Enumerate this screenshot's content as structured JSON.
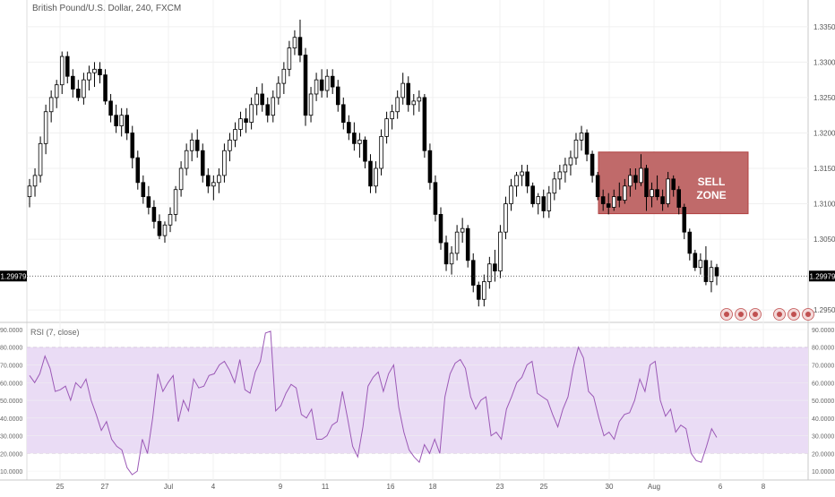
{
  "chart_data": [
    {
      "type": "candlestick",
      "title": "British Pound/U.S. Dollar, 240, FXCM",
      "x_tick_labels": [
        "25",
        "27",
        "Jul",
        "4",
        "9",
        "11",
        "16",
        "18",
        "23",
        "25",
        "30",
        "Aug",
        "6",
        "8"
      ],
      "y_tick_labels": [
        "1.33500",
        "1.33000",
        "1.32500",
        "1.32000",
        "1.31500",
        "1.31000",
        "1.30500",
        "1.29500"
      ],
      "ylim": [
        1.2935,
        1.3365
      ],
      "current_price": 1.29979,
      "current_price_label": "1.29979",
      "annotation": {
        "label_lines": [
          "SELL",
          "ZONE"
        ],
        "price_low": 1.3086,
        "price_high": 1.3173,
        "fill_color": "#c06a6a"
      },
      "up_color": "#ffffff",
      "down_color": "#000000",
      "ohlc": [
        [
          1.311,
          1.3135,
          1.3095,
          1.3125
        ],
        [
          1.3125,
          1.315,
          1.311,
          1.314
        ],
        [
          1.314,
          1.3195,
          1.313,
          1.3185
        ],
        [
          1.3185,
          1.324,
          1.317,
          1.323
        ],
        [
          1.323,
          1.326,
          1.3215,
          1.325
        ],
        [
          1.325,
          1.3275,
          1.3235,
          1.3268
        ],
        [
          1.3268,
          1.3315,
          1.3255,
          1.3308
        ],
        [
          1.3308,
          1.3315,
          1.327,
          1.328
        ],
        [
          1.328,
          1.329,
          1.325,
          1.3262
        ],
        [
          1.3262,
          1.3275,
          1.3245,
          1.325
        ],
        [
          1.325,
          1.3285,
          1.324,
          1.3275
        ],
        [
          1.3275,
          1.3295,
          1.326,
          1.3285
        ],
        [
          1.3285,
          1.33,
          1.3265,
          1.329
        ],
        [
          1.329,
          1.33,
          1.327,
          1.3282
        ],
        [
          1.3282,
          1.329,
          1.324,
          1.3245
        ],
        [
          1.3245,
          1.3255,
          1.3215,
          1.3225
        ],
        [
          1.3225,
          1.324,
          1.32,
          1.321
        ],
        [
          1.321,
          1.3235,
          1.3195,
          1.3225
        ],
        [
          1.3225,
          1.3235,
          1.319,
          1.32
        ],
        [
          1.32,
          1.321,
          1.315,
          1.3165
        ],
        [
          1.3165,
          1.3175,
          1.312,
          1.313
        ],
        [
          1.313,
          1.314,
          1.31,
          1.311
        ],
        [
          1.311,
          1.3125,
          1.3085,
          1.3095
        ],
        [
          1.3095,
          1.3105,
          1.3065,
          1.3075
        ],
        [
          1.3075,
          1.3085,
          1.305,
          1.3055
        ],
        [
          1.3055,
          1.3075,
          1.3045,
          1.307
        ],
        [
          1.307,
          1.3095,
          1.306,
          1.3085
        ],
        [
          1.3085,
          1.3125,
          1.3075,
          1.312
        ],
        [
          1.312,
          1.316,
          1.311,
          1.315
        ],
        [
          1.315,
          1.3185,
          1.314,
          1.3175
        ],
        [
          1.3175,
          1.32,
          1.316,
          1.319
        ],
        [
          1.319,
          1.3205,
          1.3165,
          1.3175
        ],
        [
          1.3175,
          1.3185,
          1.313,
          1.314
        ],
        [
          1.314,
          1.315,
          1.3115,
          1.3125
        ],
        [
          1.3125,
          1.314,
          1.3105,
          1.313
        ],
        [
          1.313,
          1.315,
          1.3115,
          1.314
        ],
        [
          1.314,
          1.3185,
          1.313,
          1.3175
        ],
        [
          1.3175,
          1.32,
          1.316,
          1.319
        ],
        [
          1.319,
          1.3215,
          1.318,
          1.3205
        ],
        [
          1.3205,
          1.323,
          1.3195,
          1.322
        ],
        [
          1.322,
          1.3235,
          1.32,
          1.3215
        ],
        [
          1.3215,
          1.325,
          1.3205,
          1.324
        ],
        [
          1.324,
          1.3265,
          1.3225,
          1.3255
        ],
        [
          1.3255,
          1.327,
          1.323,
          1.324
        ],
        [
          1.324,
          1.325,
          1.3215,
          1.3225
        ],
        [
          1.3225,
          1.326,
          1.3215,
          1.325
        ],
        [
          1.325,
          1.328,
          1.324,
          1.327
        ],
        [
          1.327,
          1.33,
          1.3255,
          1.329
        ],
        [
          1.329,
          1.333,
          1.328,
          1.332
        ],
        [
          1.332,
          1.3345,
          1.331,
          1.3335
        ],
        [
          1.3335,
          1.336,
          1.33,
          1.331
        ],
        [
          1.331,
          1.332,
          1.321,
          1.3225
        ],
        [
          1.3225,
          1.3265,
          1.3215,
          1.3255
        ],
        [
          1.3255,
          1.3285,
          1.3245,
          1.3275
        ],
        [
          1.3275,
          1.329,
          1.325,
          1.326
        ],
        [
          1.326,
          1.329,
          1.325,
          1.328
        ],
        [
          1.328,
          1.329,
          1.3255,
          1.3265
        ],
        [
          1.3265,
          1.3275,
          1.323,
          1.324
        ],
        [
          1.324,
          1.325,
          1.3205,
          1.3215
        ],
        [
          1.3215,
          1.3225,
          1.319,
          1.32
        ],
        [
          1.32,
          1.3215,
          1.3175,
          1.3185
        ],
        [
          1.3185,
          1.32,
          1.3165,
          1.319
        ],
        [
          1.319,
          1.3195,
          1.315,
          1.316
        ],
        [
          1.316,
          1.317,
          1.3115,
          1.3125
        ],
        [
          1.3125,
          1.316,
          1.3115,
          1.315
        ],
        [
          1.315,
          1.3205,
          1.314,
          1.3195
        ],
        [
          1.3195,
          1.323,
          1.3185,
          1.322
        ],
        [
          1.322,
          1.324,
          1.3205,
          1.323
        ],
        [
          1.323,
          1.326,
          1.322,
          1.325
        ],
        [
          1.325,
          1.3285,
          1.324,
          1.327
        ],
        [
          1.327,
          1.328,
          1.323,
          1.324
        ],
        [
          1.324,
          1.3255,
          1.3225,
          1.3245
        ],
        [
          1.3245,
          1.326,
          1.323,
          1.325
        ],
        [
          1.325,
          1.3255,
          1.3165,
          1.3175
        ],
        [
          1.3175,
          1.3185,
          1.312,
          1.313
        ],
        [
          1.313,
          1.314,
          1.3075,
          1.3085
        ],
        [
          1.3085,
          1.3095,
          1.3035,
          1.3045
        ],
        [
          1.3045,
          1.3055,
          1.3005,
          1.3015
        ],
        [
          1.3015,
          1.304,
          1.3,
          1.303
        ],
        [
          1.303,
          1.307,
          1.302,
          1.306
        ],
        [
          1.306,
          1.308,
          1.3045,
          1.3065
        ],
        [
          1.3065,
          1.307,
          1.301,
          1.302
        ],
        [
          1.302,
          1.303,
          1.2975,
          1.2985
        ],
        [
          1.2985,
          1.299,
          1.2955,
          1.2965
        ],
        [
          1.2965,
          1.3,
          1.2955,
          1.299
        ],
        [
          1.299,
          1.3025,
          1.298,
          1.3015
        ],
        [
          1.3015,
          1.3035,
          1.299,
          1.3005
        ],
        [
          1.3005,
          1.307,
          1.2995,
          1.306
        ],
        [
          1.306,
          1.311,
          1.305,
          1.31
        ],
        [
          1.31,
          1.3135,
          1.309,
          1.3125
        ],
        [
          1.3125,
          1.3145,
          1.311,
          1.314
        ],
        [
          1.314,
          1.3155,
          1.3125,
          1.3145
        ],
        [
          1.3145,
          1.3155,
          1.3115,
          1.3125
        ],
        [
          1.3125,
          1.313,
          1.3095,
          1.31
        ],
        [
          1.31,
          1.3115,
          1.3085,
          1.311
        ],
        [
          1.311,
          1.312,
          1.308,
          1.309
        ],
        [
          1.309,
          1.3125,
          1.308,
          1.3115
        ],
        [
          1.3115,
          1.3145,
          1.3105,
          1.3135
        ],
        [
          1.3135,
          1.3155,
          1.312,
          1.3145
        ],
        [
          1.3145,
          1.3165,
          1.313,
          1.3155
        ],
        [
          1.3155,
          1.3175,
          1.314,
          1.3165
        ],
        [
          1.3165,
          1.32,
          1.3155,
          1.319
        ],
        [
          1.319,
          1.321,
          1.3175,
          1.32
        ],
        [
          1.32,
          1.3205,
          1.316,
          1.317
        ],
        [
          1.317,
          1.3175,
          1.313,
          1.314
        ],
        [
          1.314,
          1.3145,
          1.3105,
          1.311
        ],
        [
          1.311,
          1.312,
          1.309,
          1.31
        ],
        [
          1.31,
          1.3115,
          1.3085,
          1.3095
        ],
        [
          1.3095,
          1.312,
          1.309,
          1.311
        ],
        [
          1.311,
          1.313,
          1.3095,
          1.3105
        ],
        [
          1.3105,
          1.3135,
          1.31,
          1.3125
        ],
        [
          1.3125,
          1.315,
          1.311,
          1.314
        ],
        [
          1.314,
          1.315,
          1.312,
          1.313
        ],
        [
          1.313,
          1.317,
          1.3125,
          1.315
        ],
        [
          1.315,
          1.3155,
          1.309,
          1.311
        ],
        [
          1.311,
          1.313,
          1.3095,
          1.312
        ],
        [
          1.312,
          1.314,
          1.3105,
          1.311
        ],
        [
          1.311,
          1.312,
          1.309,
          1.31
        ],
        [
          1.31,
          1.3145,
          1.3095,
          1.3135
        ],
        [
          1.3135,
          1.314,
          1.311,
          1.312
        ],
        [
          1.312,
          1.3125,
          1.3085,
          1.3095
        ],
        [
          1.3095,
          1.31,
          1.305,
          1.306
        ],
        [
          1.306,
          1.3065,
          1.302,
          1.303
        ],
        [
          1.303,
          1.3035,
          1.3005,
          1.301
        ],
        [
          1.301,
          1.303,
          1.3,
          1.302
        ],
        [
          1.302,
          1.304,
          1.2985,
          1.299
        ],
        [
          1.299,
          1.302,
          1.2975,
          1.301
        ],
        [
          1.301,
          1.3015,
          1.2985,
          1.2998
        ]
      ]
    },
    {
      "type": "line",
      "title": "RSI (7, close)",
      "y_tick_labels": [
        "90.0000",
        "80.0000",
        "70.0000",
        "60.0000",
        "50.0000",
        "40.0000",
        "30.0000",
        "20.0000",
        "10.0000"
      ],
      "ylim": [
        5,
        93
      ],
      "band": [
        20,
        80
      ],
      "series_color": "#9b59b6",
      "band_color": "#eadcf5",
      "values": [
        64,
        60,
        65,
        75,
        68,
        55,
        56,
        58,
        50,
        60,
        57,
        62,
        50,
        42,
        33,
        38,
        28,
        24,
        22,
        12,
        8,
        10,
        28,
        20,
        40,
        65,
        55,
        60,
        64,
        38,
        50,
        44,
        62,
        57,
        58,
        64,
        65,
        70,
        72,
        67,
        60,
        73,
        56,
        54,
        66,
        72,
        88,
        89,
        44,
        47,
        54,
        59,
        57,
        42,
        40,
        45,
        28,
        28,
        30,
        36,
        38,
        55,
        40,
        24,
        18,
        35,
        58,
        63,
        66,
        55,
        65,
        70,
        46,
        32,
        22,
        18,
        15,
        25,
        20,
        28,
        20,
        52,
        65,
        71,
        73,
        68,
        52,
        45,
        50,
        52,
        30,
        32,
        28,
        45,
        52,
        60,
        63,
        70,
        72,
        54,
        52,
        50,
        42,
        35,
        45,
        52,
        68,
        80,
        74,
        55,
        52,
        40,
        30,
        32,
        28,
        38,
        42,
        43,
        50,
        62,
        55,
        70,
        72,
        50,
        41,
        45,
        32,
        36,
        34,
        20,
        16,
        15,
        24,
        34,
        29
      ]
    }
  ]
}
